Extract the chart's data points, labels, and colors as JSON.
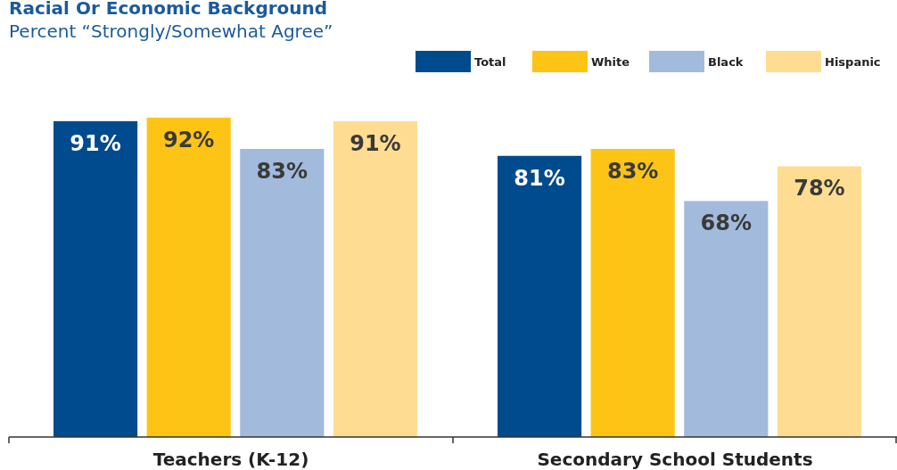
{
  "chart_data": {
    "type": "bar",
    "title": "Racial Or Economic Background",
    "subtitle": "Percent “Strongly/Somewhat Agree”",
    "categories": [
      "Teachers (K-12)",
      "Secondary School Students"
    ],
    "series": [
      {
        "name": "Total",
        "color": "#004b8d",
        "values": [
          91,
          81
        ],
        "value_labels": [
          "91%",
          "81%"
        ]
      },
      {
        "name": "White",
        "color": "#fdc415",
        "values": [
          92,
          83
        ],
        "value_labels": [
          "92%",
          "83%"
        ]
      },
      {
        "name": "Black",
        "color": "#a2badc",
        "values": [
          83,
          68
        ],
        "value_labels": [
          "83%",
          "68%"
        ]
      },
      {
        "name": "Hispanic",
        "color": "#fedd92",
        "values": [
          91,
          78
        ],
        "value_labels": [
          "91%",
          "78%"
        ]
      }
    ],
    "legend": "top right"
  }
}
